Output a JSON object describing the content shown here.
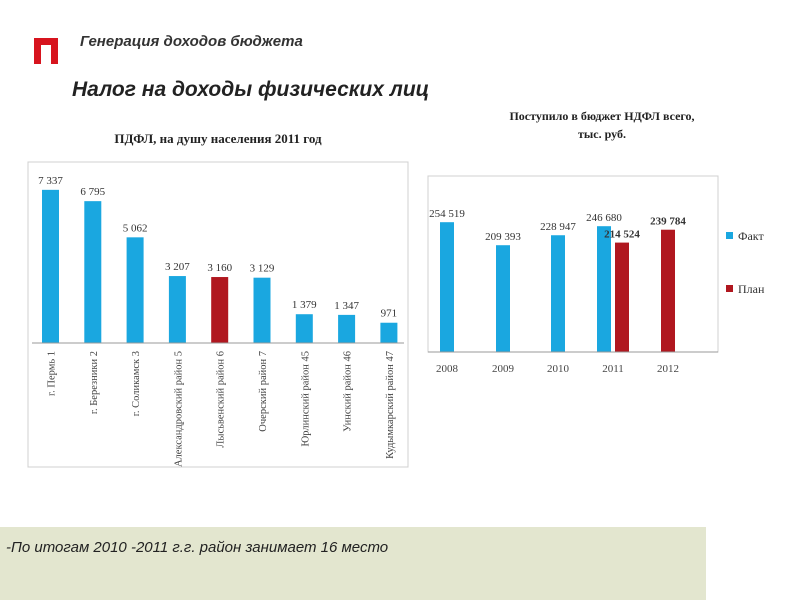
{
  "header": {
    "subtitle": "Генерация доходов бюджета",
    "title": "Налог на доходы физических лиц",
    "logo_icon": "red-pi-logo-icon"
  },
  "footer": {
    "text": "-По итогам 2010 -2011 г.г. район занимает 16 место"
  },
  "colors": {
    "accent": "#d7141e",
    "fact": "#1aa7e0",
    "plan": "#b0171f",
    "footer_bg": "#e3e6cf"
  },
  "chart_data": [
    {
      "type": "bar",
      "title": "ПДФЛ, на душу населения 2011 год",
      "categories": [
        "г. Пермь 1",
        "г. Березники 2",
        "г. Соликамск 3",
        "Александровский район 5",
        "Лысьвенский район 6",
        "Очерский район 7",
        "Юрлинский район 45",
        "Уинский район 46",
        "Кудымкарский район 47"
      ],
      "values": [
        7337,
        6795,
        5062,
        3207,
        3160,
        3129,
        1379,
        1347,
        971
      ],
      "value_labels": [
        "7 337",
        "6 795",
        "5 062",
        "3 207",
        "3 160",
        "3 129",
        "1 379",
        "1 347",
        "971"
      ],
      "highlight_index": 4,
      "ylim": [
        0,
        8000
      ],
      "xlabel": "",
      "ylabel": ""
    },
    {
      "type": "bar",
      "title": "Поступило в бюджет НДФЛ всего, тыс. руб.",
      "categories": [
        "2008",
        "2009",
        "2010",
        "2011",
        "2012"
      ],
      "series": [
        {
          "name": "Факт",
          "values": [
            254519,
            209393,
            228947,
            246680,
            null
          ],
          "labels": [
            "254 519",
            "209 393",
            "228 947",
            "246 680",
            ""
          ]
        },
        {
          "name": "План",
          "values": [
            null,
            null,
            null,
            214524,
            239784
          ],
          "labels": [
            "",
            "",
            "",
            "214 524",
            "239 784"
          ]
        }
      ],
      "ylim": [
        0,
        300000
      ],
      "legend": "right",
      "xlabel": "",
      "ylabel": ""
    }
  ]
}
